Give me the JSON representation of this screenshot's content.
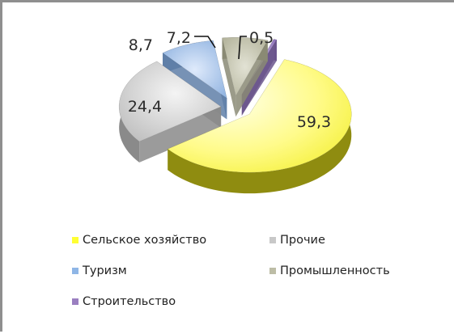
{
  "chart_data": {
    "type": "pie",
    "style": "3d-exploded",
    "categories": [
      "Сельское хозяйство",
      "Прочие",
      "Туризм",
      "Промышленность",
      "Строительство"
    ],
    "values": [
      59.3,
      24.4,
      8.7,
      7.2,
      0.5
    ],
    "data_labels": [
      "59,3",
      "24,4",
      "8,7",
      "7,2",
      "0,5"
    ],
    "colors": [
      "#ffff33",
      "#c8c8c8",
      "#8fb6e6",
      "#bdbda6",
      "#9a7fc0"
    ],
    "legend_position": "bottom",
    "legend": [
      {
        "label": "Сельское хозяйство",
        "color": "#ffff33"
      },
      {
        "label": "Прочие",
        "color": "#c8c8c8"
      },
      {
        "label": "Туризм",
        "color": "#8fb6e6"
      },
      {
        "label": "Промышленность",
        "color": "#bdbda6"
      },
      {
        "label": "Строительство",
        "color": "#9a7fc0"
      }
    ]
  }
}
